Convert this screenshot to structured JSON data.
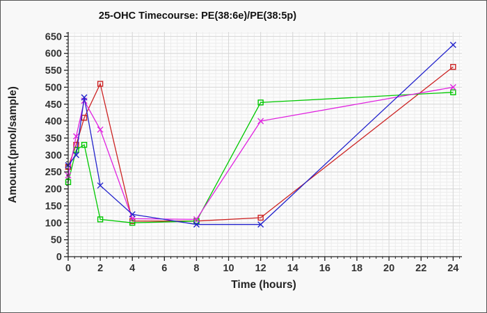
{
  "window": {
    "background": "#f8f8f8",
    "border_color": "#555555"
  },
  "chart_data": {
    "type": "line",
    "title": "25-OHC Timecourse: PE(38:6e)/PE(38:5p)",
    "xlabel": "Time (hours)",
    "ylabel": "Amount.(pmol/sample)",
    "x_ticks": [
      0,
      2,
      4,
      6,
      8,
      10,
      12,
      14,
      16,
      18,
      20,
      22,
      24
    ],
    "y_ticks": [
      0,
      50,
      100,
      150,
      200,
      250,
      300,
      350,
      400,
      450,
      500,
      550,
      600,
      650
    ],
    "x_minor_step": 0.4,
    "y_minor_step": 10,
    "xlim": [
      0,
      24.55
    ],
    "ylim": [
      0,
      663
    ],
    "grid": "major+minor",
    "legend": "none",
    "x": [
      0,
      0.5,
      1,
      2,
      4,
      8,
      12,
      24
    ],
    "series": [
      {
        "name": "red-squares",
        "marker": "square",
        "color": "#cc2222",
        "values": [
          265,
          330,
          410,
          510,
          105,
          105,
          115,
          560
        ]
      },
      {
        "name": "green-squares",
        "marker": "square",
        "color": "#00c800",
        "values": [
          220,
          315,
          330,
          110,
          100,
          105,
          455,
          485
        ]
      },
      {
        "name": "magenta-crosses",
        "marker": "x",
        "color": "#e022e0",
        "values": [
          240,
          355,
          460,
          375,
          112,
          110,
          400,
          500
        ]
      },
      {
        "name": "blue-crosses",
        "marker": "x",
        "color": "#2222cc",
        "values": [
          270,
          300,
          470,
          210,
          125,
          95,
          95,
          625
        ]
      }
    ],
    "colors": {
      "grid_major": "#d8d8d8",
      "grid_minor": "#ececec",
      "axis": "#222222",
      "tick_label": "#333333",
      "plot_bg": "#fcfcfc"
    }
  }
}
